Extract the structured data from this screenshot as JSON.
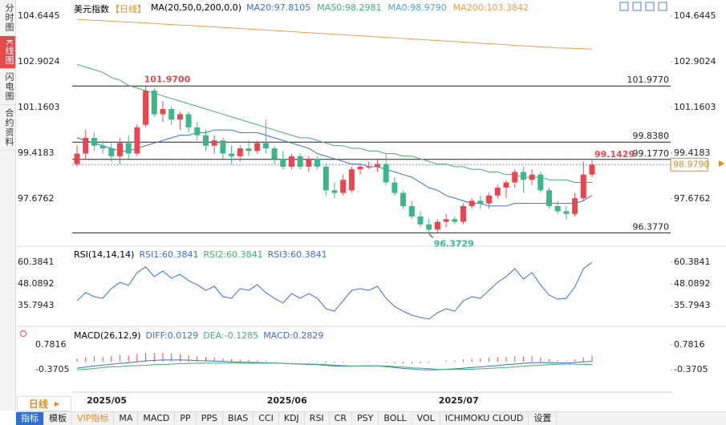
{
  "sidebar_tabs": [
    "分时图",
    "K线图",
    "闪电图",
    "合约资料"
  ],
  "period_button": "日线",
  "toolbar": [
    "指标",
    "模板",
    "VIP指标",
    "MA",
    "MACD",
    "PP",
    "PPS",
    "BIAS",
    "CCI",
    "KDJ",
    "RSI",
    "CR",
    "PSY",
    "BOLL",
    "VOL",
    "ICHIMOKU CLOUD",
    "设置"
  ],
  "chart_data": {
    "type": "candlestick",
    "title": "美元指数",
    "period": "【日线】",
    "indicator": "MA(20,50,0,200,0,0)",
    "up_color": "#e8474f",
    "down_color": "#3cb68a",
    "ylim": [
      95.93,
      104.95
    ],
    "yticks": [
      104.6445,
      102.9024,
      101.1603,
      99.4183,
      97.6762
    ],
    "categories": [
      null,
      null,
      null,
      "2025/05",
      null,
      null,
      null,
      null,
      null,
      null,
      null,
      null,
      null,
      null,
      null,
      null,
      null,
      null,
      null,
      null,
      null,
      null,
      null,
      null,
      "2025/06",
      null,
      null,
      null,
      null,
      null,
      null,
      null,
      null,
      null,
      null,
      null,
      null,
      null,
      null,
      null,
      null,
      null,
      null,
      null,
      "2025/07",
      null,
      null,
      null,
      null,
      null,
      null,
      null,
      null,
      null,
      null,
      null,
      null,
      null,
      null,
      null,
      null
    ],
    "candles": [
      [
        99.0,
        99.7,
        98.9,
        99.4
      ],
      [
        99.4,
        100.3,
        99.2,
        100.0
      ],
      [
        100.0,
        100.2,
        99.5,
        99.7
      ],
      [
        99.7,
        99.9,
        99.4,
        99.6
      ],
      [
        99.6,
        99.8,
        99.1,
        99.3
      ],
      [
        99.3,
        100.0,
        99.0,
        99.8
      ],
      [
        99.8,
        100.1,
        99.2,
        99.4
      ],
      [
        99.4,
        100.5,
        99.3,
        100.4
      ],
      [
        100.5,
        101.97,
        100.4,
        101.8
      ],
      [
        101.8,
        101.9,
        100.8,
        100.9
      ],
      [
        100.9,
        101.4,
        100.6,
        101.1
      ],
      [
        101.1,
        101.2,
        100.5,
        100.7
      ],
      [
        100.7,
        101.0,
        100.3,
        100.9
      ],
      [
        100.9,
        101.0,
        100.2,
        100.4
      ],
      [
        100.4,
        100.6,
        99.9,
        100.1
      ],
      [
        100.1,
        100.3,
        99.5,
        99.7
      ],
      [
        99.7,
        100.1,
        99.4,
        99.9
      ],
      [
        99.9,
        100.0,
        99.2,
        99.4
      ],
      [
        99.4,
        99.7,
        99.0,
        99.3
      ],
      [
        99.3,
        99.7,
        99.1,
        99.6
      ],
      [
        99.6,
        99.9,
        99.3,
        99.5
      ],
      [
        99.5,
        99.9,
        99.4,
        99.8
      ],
      [
        99.8,
        100.7,
        99.4,
        99.6
      ],
      [
        99.6,
        99.7,
        99.0,
        99.2
      ],
      [
        99.2,
        99.5,
        98.8,
        98.9
      ],
      [
        98.9,
        99.4,
        98.8,
        99.3
      ],
      [
        99.3,
        99.4,
        98.8,
        98.9
      ],
      [
        98.9,
        99.3,
        98.7,
        99.2
      ],
      [
        99.2,
        99.3,
        98.8,
        98.9
      ],
      [
        98.9,
        99.0,
        97.8,
        98.0
      ],
      [
        98.0,
        98.3,
        97.7,
        97.9
      ],
      [
        97.9,
        98.6,
        97.8,
        98.4
      ],
      [
        98.0,
        98.9,
        97.9,
        98.8
      ],
      [
        98.8,
        99.0,
        98.6,
        98.9
      ],
      [
        98.9,
        99.1,
        98.8,
        98.9
      ],
      [
        98.9,
        99.2,
        98.7,
        99.0
      ],
      [
        99.0,
        99.4,
        98.2,
        98.3
      ],
      [
        98.3,
        98.5,
        97.8,
        97.9
      ],
      [
        97.9,
        98.0,
        97.3,
        97.4
      ],
      [
        97.4,
        97.6,
        96.9,
        97.0
      ],
      [
        97.0,
        97.2,
        96.6,
        96.7
      ],
      [
        96.7,
        96.9,
        96.3729,
        96.5
      ],
      [
        96.5,
        96.9,
        96.4,
        96.8
      ],
      [
        96.8,
        97.1,
        96.6,
        96.9
      ],
      [
        96.9,
        97.0,
        96.7,
        96.8
      ],
      [
        96.8,
        97.5,
        96.7,
        97.4
      ],
      [
        97.4,
        97.7,
        97.3,
        97.6
      ],
      [
        97.6,
        97.8,
        97.3,
        97.5
      ],
      [
        97.5,
        97.9,
        97.3,
        97.8
      ],
      [
        97.8,
        98.2,
        97.7,
        98.1
      ],
      [
        98.1,
        98.4,
        97.7,
        98.3
      ],
      [
        98.3,
        98.8,
        98.1,
        98.7
      ],
      [
        98.7,
        98.9,
        97.9,
        98.4
      ],
      [
        98.4,
        98.8,
        98.2,
        98.6
      ],
      [
        98.6,
        98.7,
        97.9,
        98.0
      ],
      [
        98.0,
        98.1,
        97.3,
        97.4
      ],
      [
        97.4,
        97.6,
        97.1,
        97.2
      ],
      [
        97.2,
        97.4,
        96.9,
        97.1
      ],
      [
        97.1,
        97.9,
        97.0,
        97.7
      ],
      [
        97.7,
        99.1,
        97.6,
        98.6
      ],
      [
        98.6,
        99.1429,
        98.5,
        98.979
      ]
    ],
    "ma": [
      {
        "name": "MA20:97.8105",
        "color": "#3a6fd8",
        "values": [
          100.0,
          99.9,
          99.8,
          99.7,
          99.6,
          99.5,
          99.5,
          99.6,
          99.7,
          99.8,
          99.9,
          100.0,
          100.1,
          100.1,
          100.2,
          100.2,
          100.3,
          100.3,
          100.3,
          100.2,
          100.2,
          100.2,
          100.1,
          100.0,
          99.9,
          99.8,
          99.7,
          99.6,
          99.4,
          99.3,
          99.2,
          99.1,
          99.0,
          99.0,
          98.9,
          98.9,
          98.8,
          98.7,
          98.6,
          98.5,
          98.3,
          98.1,
          98.0,
          97.8,
          97.7,
          97.6,
          97.5,
          97.5,
          97.4,
          97.4,
          97.4,
          97.5,
          97.5,
          97.5,
          97.5,
          97.5,
          97.5,
          97.5,
          97.5,
          97.6,
          97.8105
        ]
      },
      {
        "name": "MA50:98.2981",
        "color": "#3cb371",
        "values": [
          102.8,
          102.7,
          102.6,
          102.5,
          102.3,
          102.2,
          102.0,
          101.9,
          101.8,
          101.7,
          101.6,
          101.5,
          101.4,
          101.3,
          101.2,
          101.1,
          101.0,
          100.9,
          100.8,
          100.7,
          100.6,
          100.5,
          100.4,
          100.3,
          100.2,
          100.1,
          100.0,
          100.0,
          99.9,
          99.8,
          99.7,
          99.7,
          99.6,
          99.6,
          99.5,
          99.5,
          99.4,
          99.4,
          99.3,
          99.3,
          99.2,
          99.1,
          99.0,
          99.0,
          98.9,
          98.9,
          98.8,
          98.8,
          98.7,
          98.7,
          98.6,
          98.6,
          98.5,
          98.5,
          98.5,
          98.4,
          98.4,
          98.4,
          98.3,
          98.3,
          98.2981
        ]
      },
      {
        "name": "MA0:98.9790",
        "color": "#46a6d6"
      },
      {
        "name": "MA200:103.3842",
        "color": "#e8a04a",
        "values": [
          104.52,
          104.5,
          104.48,
          104.47,
          104.45,
          104.43,
          104.41,
          104.4,
          104.38,
          104.36,
          104.34,
          104.32,
          104.3,
          104.29,
          104.27,
          104.25,
          104.23,
          104.21,
          104.19,
          104.17,
          104.15,
          104.13,
          104.11,
          104.09,
          104.07,
          104.05,
          104.03,
          104.01,
          103.99,
          103.97,
          103.95,
          103.93,
          103.91,
          103.89,
          103.87,
          103.85,
          103.83,
          103.81,
          103.79,
          103.77,
          103.75,
          103.73,
          103.71,
          103.69,
          103.67,
          103.65,
          103.63,
          103.61,
          103.59,
          103.57,
          103.55,
          103.53,
          103.51,
          103.49,
          103.47,
          103.45,
          103.43,
          103.42,
          103.41,
          103.4,
          103.3842
        ]
      }
    ],
    "levels": [
      {
        "value": 101.977,
        "label": "101.9770"
      },
      {
        "value": 99.838,
        "label": "99.8380"
      },
      {
        "value": 99.177,
        "label": "99.1770"
      },
      {
        "value": 96.377,
        "label": "96.3770"
      }
    ],
    "high_label": "101.9700",
    "low_label": "96.3729",
    "last_high_label": "99.1429",
    "last_price": {
      "value": 98.979,
      "label": "98.9790"
    },
    "rsi": {
      "title": "RSI(14,14,14)",
      "labels": [
        "RSI1:60.3841",
        "RSI2:60.3841",
        "RSI3:60.3841"
      ],
      "label_colors": [
        "#3a6fd8",
        "#3cb371",
        "#3a6fd8"
      ],
      "color": "#3a6fd8",
      "ylim": [
        27.14,
        68.12
      ],
      "yticks": [
        60.3841,
        48.0892,
        35.7943
      ],
      "values": [
        38.5,
        43.1,
        40.8,
        39.9,
        45.4,
        49.0,
        47.2,
        54.5,
        57.7,
        52.2,
        55.4,
        51.3,
        53.5,
        49.9,
        47.6,
        44.4,
        46.7,
        40.8,
        39.9,
        45.4,
        44.4,
        47.6,
        43.1,
        39.9,
        37.2,
        42.6,
        39.9,
        42.6,
        39.9,
        34.0,
        32.6,
        38.5,
        44.4,
        45.4,
        44.4,
        46.7,
        39.9,
        35.3,
        32.6,
        30.3,
        29.0,
        28.1,
        31.7,
        34.0,
        32.6,
        38.5,
        40.8,
        39.9,
        44.4,
        49.0,
        52.2,
        56.7,
        50.8,
        54.5,
        47.6,
        41.7,
        39.4,
        39.9,
        46.3,
        56.7,
        60.3841
      ]
    },
    "macd": {
      "title": "MACD(26,12,9)",
      "labels": [
        "DIFF:0.0129",
        "DEA:-0.1285",
        "MACD:0.2829"
      ],
      "label_colors": [
        "#3a6fd8",
        "#3cb371",
        "#3a6fd8"
      ],
      "diff_color": "#3a6fd8",
      "dea_color": "#3cb371",
      "ylim": [
        -1.374,
        1.525
      ],
      "yticks": [
        0.7816,
        -0.3705
      ],
      "hist": [
        0.15,
        0.2,
        0.25,
        0.22,
        0.25,
        0.3,
        0.28,
        0.35,
        0.42,
        0.4,
        0.42,
        0.38,
        0.35,
        0.3,
        0.25,
        0.22,
        0.2,
        0.15,
        0.12,
        0.1,
        0.08,
        0.06,
        0.04,
        0.02,
        -0.01,
        -0.03,
        -0.02,
        -0.04,
        -0.03,
        -0.06,
        -0.08,
        -0.05,
        -0.02,
        0.01,
        0.03,
        -0.02,
        -0.06,
        -0.09,
        -0.1,
        -0.1,
        -0.08,
        -0.06,
        0.0,
        0.04,
        0.06,
        0.1,
        0.14,
        0.16,
        0.18,
        0.2,
        0.22,
        0.25,
        0.24,
        0.26,
        0.2,
        0.12,
        0.06,
        0.04,
        0.1,
        0.2,
        0.2829
      ],
      "diff": [
        -0.3,
        -0.25,
        -0.2,
        -0.16,
        -0.12,
        -0.08,
        -0.05,
        -0.01,
        0.04,
        0.06,
        0.08,
        0.08,
        0.08,
        0.07,
        0.05,
        0.04,
        0.03,
        0.01,
        -0.01,
        -0.02,
        -0.03,
        -0.04,
        -0.05,
        -0.06,
        -0.08,
        -0.1,
        -0.11,
        -0.13,
        -0.14,
        -0.17,
        -0.2,
        -0.21,
        -0.21,
        -0.2,
        -0.19,
        -0.2,
        -0.23,
        -0.27,
        -0.31,
        -0.34,
        -0.37,
        -0.38,
        -0.37,
        -0.35,
        -0.33,
        -0.3,
        -0.27,
        -0.24,
        -0.21,
        -0.18,
        -0.14,
        -0.11,
        -0.08,
        -0.05,
        -0.04,
        -0.05,
        -0.06,
        -0.06,
        -0.04,
        -0.01,
        0.0129
      ],
      "dea": [
        -0.37,
        -0.35,
        -0.32,
        -0.27,
        -0.24,
        -0.23,
        -0.19,
        -0.18,
        -0.17,
        -0.14,
        -0.13,
        -0.11,
        -0.09,
        -0.08,
        -0.07,
        -0.07,
        -0.07,
        -0.07,
        -0.07,
        -0.07,
        -0.07,
        -0.07,
        -0.07,
        -0.07,
        -0.08,
        -0.09,
        -0.1,
        -0.11,
        -0.12,
        -0.14,
        -0.16,
        -0.18,
        -0.2,
        -0.2,
        -0.2,
        -0.19,
        -0.2,
        -0.22,
        -0.25,
        -0.28,
        -0.3,
        -0.32,
        -0.35,
        -0.36,
        -0.36,
        -0.35,
        -0.35,
        -0.33,
        -0.31,
        -0.29,
        -0.27,
        -0.24,
        -0.21,
        -0.18,
        -0.16,
        -0.14,
        -0.12,
        -0.11,
        -0.11,
        -0.13,
        -0.1285
      ]
    }
  }
}
